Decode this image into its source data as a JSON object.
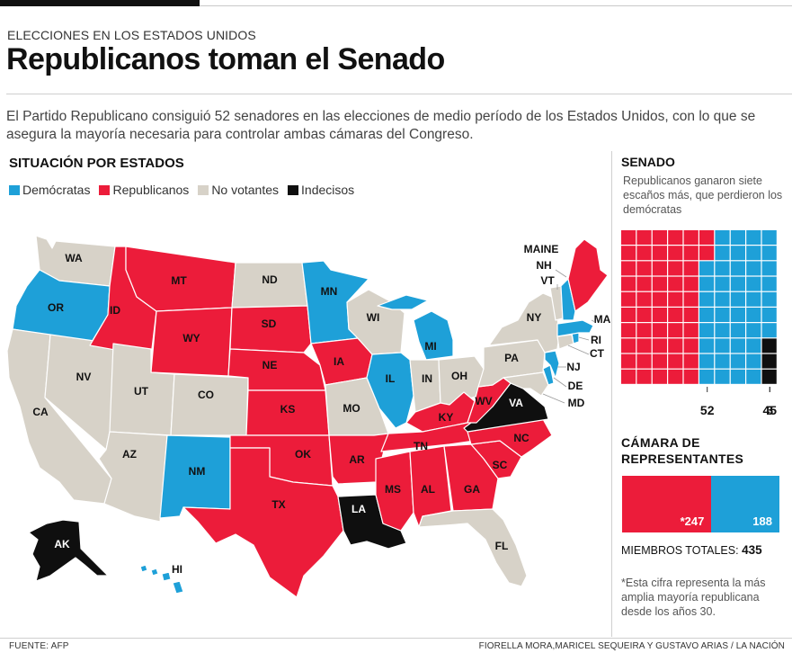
{
  "header": {
    "kicker": "ELECCIONES EN LOS ESTADOS UNIDOS",
    "title": "Republicanos toman el Senado",
    "intro": "El Partido Republicano consiguió 52 senadores en las elecciones de medio período de los Estados Unidos, con lo que se asegura la mayoría necesaria para controlar ambas cámaras del Congreso."
  },
  "colors": {
    "democrat": "#1ea0d8",
    "republican": "#ec1c3a",
    "non_voting": "#d7d2c8",
    "undecided": "#0f0f0f"
  },
  "map": {
    "title": "SITUACIÓN POR ESTADOS",
    "legend": [
      {
        "label": "Demócratas",
        "color": "#1ea0d8"
      },
      {
        "label": "Republicanos",
        "color": "#ec1c3a"
      },
      {
        "label": "No votantes",
        "color": "#d7d2c8"
      },
      {
        "label": "Indecisos",
        "color": "#0f0f0f"
      }
    ],
    "states": [
      {
        "code": "WA",
        "result": "No votantes"
      },
      {
        "code": "OR",
        "result": "Demócratas"
      },
      {
        "code": "CA",
        "result": "No votantes"
      },
      {
        "code": "NV",
        "result": "No votantes"
      },
      {
        "code": "ID",
        "result": "Republicanos"
      },
      {
        "code": "MT",
        "result": "Republicanos"
      },
      {
        "code": "WY",
        "result": "Republicanos"
      },
      {
        "code": "UT",
        "result": "No votantes"
      },
      {
        "code": "AZ",
        "result": "No votantes"
      },
      {
        "code": "CO",
        "result": "No votantes"
      },
      {
        "code": "NM",
        "result": "Demócratas"
      },
      {
        "code": "ND",
        "result": "No votantes"
      },
      {
        "code": "SD",
        "result": "Republicanos"
      },
      {
        "code": "NE",
        "result": "Republicanos"
      },
      {
        "code": "KS",
        "result": "Republicanos"
      },
      {
        "code": "OK",
        "result": "Republicanos"
      },
      {
        "code": "TX",
        "result": "Republicanos"
      },
      {
        "code": "MN",
        "result": "Demócratas"
      },
      {
        "code": "IA",
        "result": "Republicanos"
      },
      {
        "code": "MO",
        "result": "No votantes"
      },
      {
        "code": "AR",
        "result": "Republicanos"
      },
      {
        "code": "LA",
        "result": "Indecisos"
      },
      {
        "code": "WI",
        "result": "No votantes"
      },
      {
        "code": "IL",
        "result": "Demócratas"
      },
      {
        "code": "MS",
        "result": "Republicanos"
      },
      {
        "code": "MI",
        "result": "Demócratas"
      },
      {
        "code": "IN",
        "result": "No votantes"
      },
      {
        "code": "OH",
        "result": "No votantes"
      },
      {
        "code": "KY",
        "result": "Republicanos"
      },
      {
        "code": "TN",
        "result": "Republicanos"
      },
      {
        "code": "AL",
        "result": "Republicanos"
      },
      {
        "code": "GA",
        "result": "Republicanos"
      },
      {
        "code": "FL",
        "result": "No votantes"
      },
      {
        "code": "SC",
        "result": "Republicanos"
      },
      {
        "code": "NC",
        "result": "Republicanos"
      },
      {
        "code": "WV",
        "result": "Republicanos"
      },
      {
        "code": "VA",
        "result": "Indecisos"
      },
      {
        "code": "PA",
        "result": "No votantes"
      },
      {
        "code": "NY",
        "result": "No votantes"
      },
      {
        "code": "MAINE",
        "result": "Republicanos"
      },
      {
        "code": "NH",
        "result": "Demócratas"
      },
      {
        "code": "VT",
        "result": "No votantes"
      },
      {
        "code": "MA",
        "result": "Demócratas"
      },
      {
        "code": "RI",
        "result": "Demócratas"
      },
      {
        "code": "CT",
        "result": "No votantes"
      },
      {
        "code": "NJ",
        "result": "Demócratas"
      },
      {
        "code": "DE",
        "result": "Demócratas"
      },
      {
        "code": "MD",
        "result": "No votantes"
      },
      {
        "code": "AK",
        "result": "Indecisos"
      },
      {
        "code": "HI",
        "result": "Demócratas"
      }
    ]
  },
  "senate": {
    "title": "SENADO",
    "description": "Republicanos ganaron siete escaños más, que perdieron los demócratas",
    "republicans": 52,
    "democrats": 45,
    "undecided": 3,
    "label_rep": "52",
    "label_dem": "45",
    "label_und": "3"
  },
  "house": {
    "title": "CÁMARA DE REPRESENTANTES",
    "republicans": 247,
    "democrats": 188,
    "label_rep": "*247",
    "label_dem": "188",
    "total_label": "MIEMBROS TOTALES:",
    "total": "435",
    "footnote": "*Esta cifra representa la más amplia mayoría republicana desde los años 30."
  },
  "footer": {
    "source": "FUENTE:  AFP",
    "credits": "FIORELLA MORA,MARICEL SEQUEIRA Y GUSTAVO ARIAS / LA NACIÓN"
  }
}
